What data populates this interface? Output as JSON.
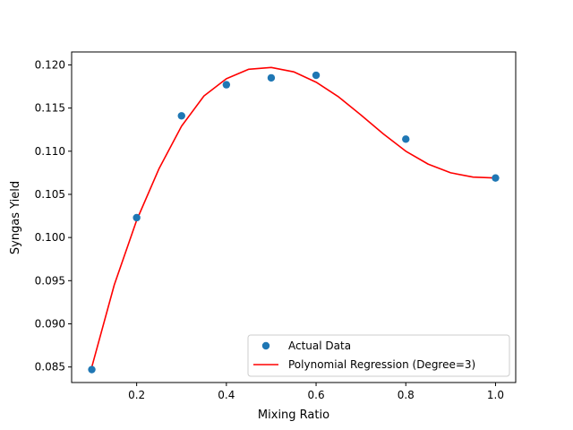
{
  "chart_data": {
    "type": "scatter",
    "title": "",
    "xlabel": "Mixing Ratio",
    "ylabel": "Syngas Yield",
    "xlim": [
      0.055,
      1.045
    ],
    "ylim": [
      0.0832,
      0.1215
    ],
    "xticks": [
      0.2,
      0.4,
      0.6,
      0.8,
      1.0
    ],
    "xtick_labels": [
      "0.2",
      "0.4",
      "0.6",
      "0.8",
      "1.0"
    ],
    "yticks": [
      0.085,
      0.09,
      0.095,
      0.1,
      0.105,
      0.11,
      0.115,
      0.12
    ],
    "ytick_labels": [
      "0.085",
      "0.090",
      "0.095",
      "0.100",
      "0.105",
      "0.110",
      "0.115",
      "0.120"
    ],
    "grid": false,
    "legend_position": "lower-right",
    "series": [
      {
        "name": "Actual Data",
        "kind": "scatter",
        "color": "#1f77b4",
        "x": [
          0.1,
          0.2,
          0.3,
          0.4,
          0.5,
          0.6,
          0.8,
          1.0
        ],
        "y": [
          0.0847,
          0.1023,
          0.1141,
          0.1177,
          0.1185,
          0.1188,
          0.1114,
          0.1069
        ]
      },
      {
        "name": "Polynomial Regression (Degree=3)",
        "kind": "line",
        "color": "#ff0000",
        "x": [
          0.1,
          0.15,
          0.2,
          0.25,
          0.3,
          0.35,
          0.4,
          0.45,
          0.5,
          0.55,
          0.6,
          0.65,
          0.7,
          0.75,
          0.8,
          0.85,
          0.9,
          0.95,
          1.0
        ],
        "y": [
          0.085,
          0.0945,
          0.102,
          0.108,
          0.1129,
          0.1164,
          0.1184,
          0.1195,
          0.1197,
          0.1192,
          0.118,
          0.1163,
          0.1142,
          0.112,
          0.11,
          0.1085,
          0.1075,
          0.107,
          0.1069
        ]
      }
    ]
  }
}
